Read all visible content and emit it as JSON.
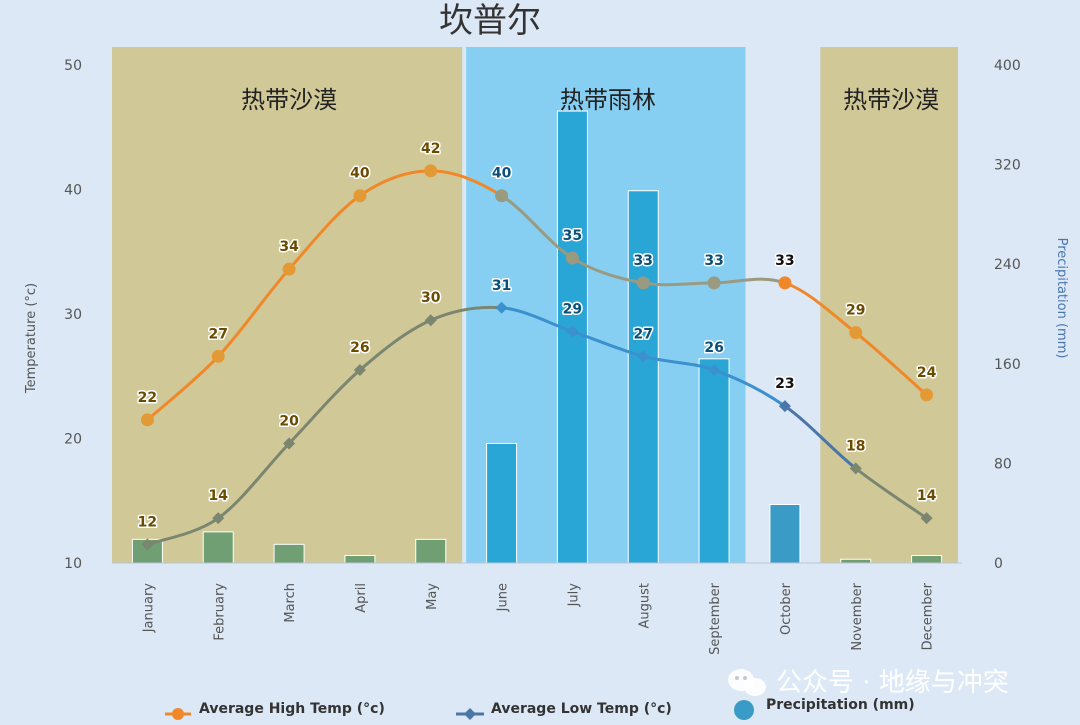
{
  "chart_data": {
    "type": "line",
    "title": "坎普尔",
    "categories": [
      "January",
      "February",
      "March",
      "April",
      "May",
      "June",
      "July",
      "August",
      "September",
      "October",
      "November",
      "December"
    ],
    "series": [
      {
        "name": "Average High Temp (°c)",
        "type": "line",
        "axis": "left",
        "color": "#f0882a",
        "values": [
          22,
          27,
          34,
          40,
          42,
          40,
          35,
          33,
          33,
          33,
          29,
          24
        ],
        "plotted": [
          21.5,
          26.6,
          33.6,
          39.5,
          41.5,
          39.5,
          34.5,
          32.5,
          32.5,
          32.5,
          28.5,
          23.5
        ]
      },
      {
        "name": "Average Low Temp (°c)",
        "type": "line",
        "axis": "left",
        "color": "#3c8fce",
        "values": [
          12,
          14,
          20,
          26,
          30,
          31,
          29,
          27,
          26,
          23,
          18,
          14
        ],
        "plotted": [
          11.5,
          13.6,
          19.6,
          25.5,
          29.5,
          30.5,
          28.6,
          26.6,
          25.5,
          22.6,
          17.6,
          13.6
        ]
      },
      {
        "name": "Precipitation (mm)",
        "type": "bar",
        "axis": "right",
        "color": "#2aa6d6",
        "values": [
          19,
          25,
          15,
          6,
          19,
          96,
          363,
          299,
          164,
          47,
          3,
          6
        ]
      }
    ],
    "ylabel": "Temperature (°c)",
    "y2label": "Precipitation (mm)",
    "ylim": [
      10,
      50
    ],
    "yticks": [
      10,
      20,
      30,
      40,
      50
    ],
    "y2lim": [
      0,
      400
    ],
    "y2ticks": [
      0,
      80,
      160,
      240,
      320,
      400
    ],
    "zones": [
      {
        "label": "热带沙漠",
        "from": "January",
        "to": "May",
        "color": "#d1c897"
      },
      {
        "label": "热带雨林",
        "from": "June",
        "to": "September",
        "color": "#87cff2"
      },
      {
        "label": "热带沙漠",
        "from": "November",
        "to": "December",
        "color": "#d1c897"
      }
    ],
    "legend": "bottom",
    "grid": false
  },
  "watermark": "公众号 · 地缘与冲突"
}
